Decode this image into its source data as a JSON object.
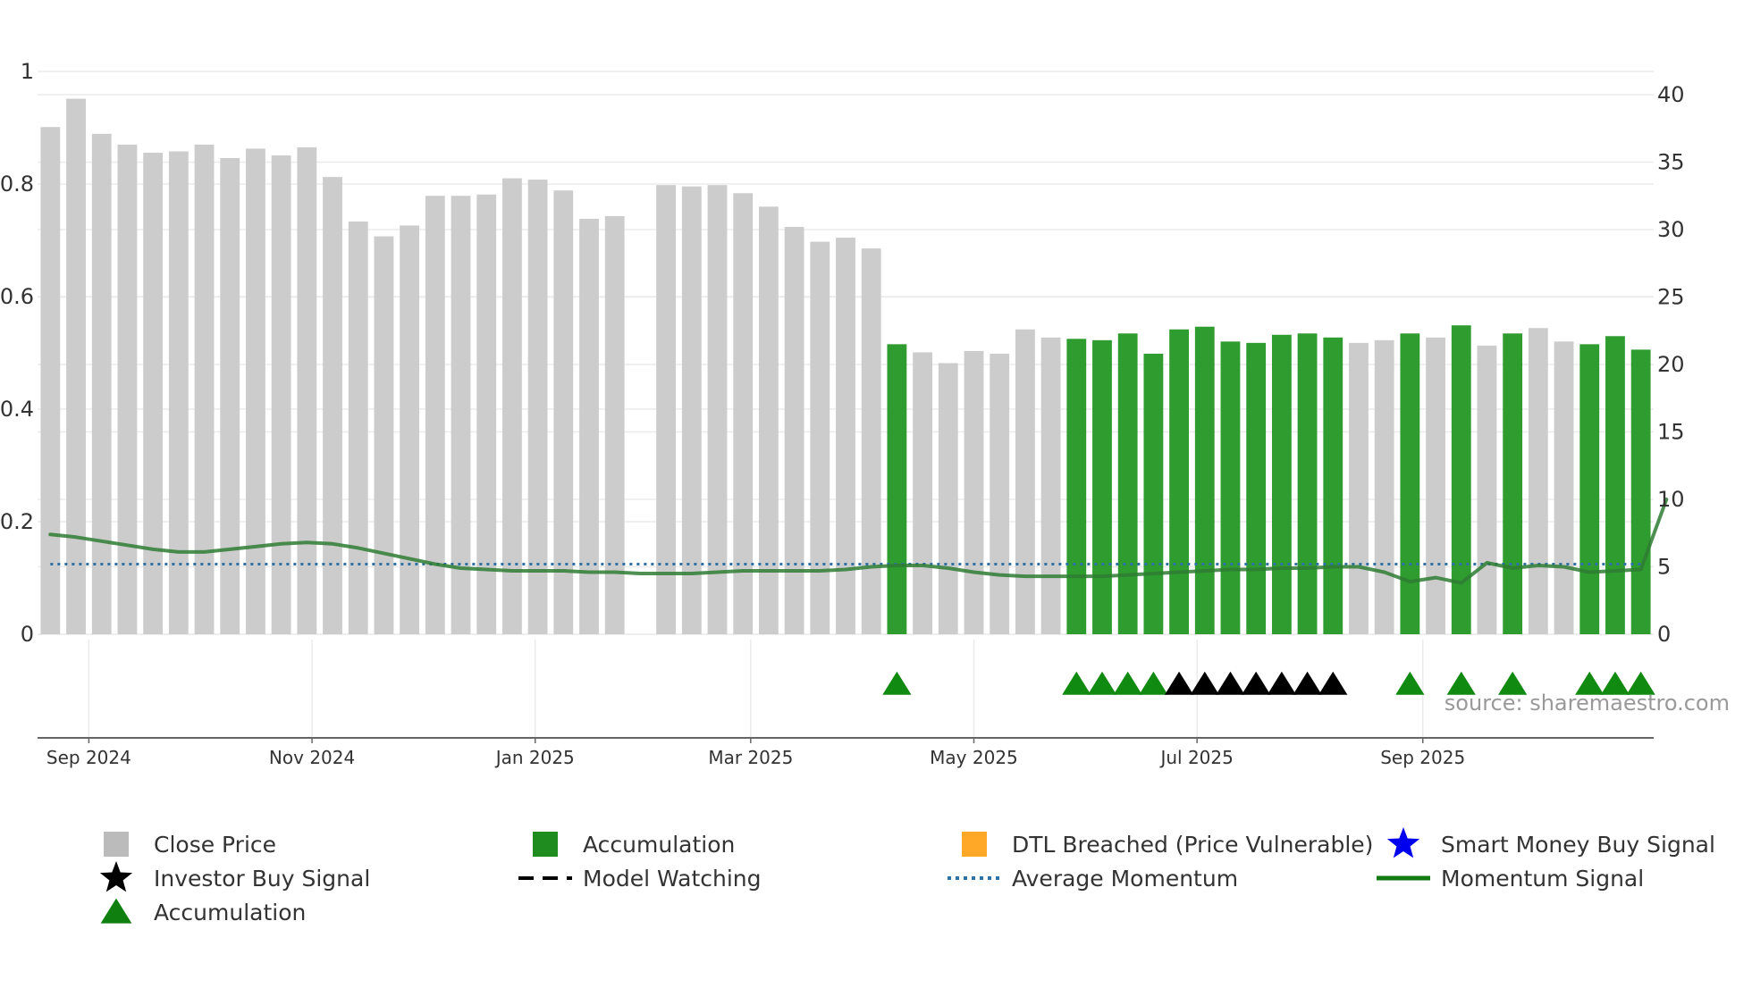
{
  "chart_data": {
    "type": "bar",
    "title": "",
    "source": "source: sharemaestro.com",
    "left_axis": {
      "min": 0,
      "max": 1,
      "ticks": [
        "0",
        "0.2",
        "0.4",
        "0.6",
        "0.8",
        "1"
      ]
    },
    "right_axis": {
      "min": 0,
      "max": 40,
      "ticks": [
        "0",
        "5",
        "10",
        "15",
        "20",
        "25",
        "30",
        "35",
        "40"
      ]
    },
    "x_axis": {
      "labels": [
        "Sep 2024",
        "Nov 2024",
        "Jan 2025",
        "Mar 2025",
        "May 2025",
        "Jul 2025",
        "Sep 2025"
      ],
      "label_at_week": [
        2.0,
        10.7,
        19.4,
        27.8,
        36.5,
        45.2,
        54.0
      ]
    },
    "close_price": [
      37.6,
      39.7,
      37.1,
      36.3,
      35.7,
      35.8,
      36.3,
      35.3,
      36.0,
      35.5,
      36.1,
      33.9,
      30.6,
      29.5,
      30.3,
      32.5,
      32.5,
      32.6,
      33.8,
      33.7,
      32.9,
      30.8,
      31.0,
      null,
      33.3,
      33.2,
      33.3,
      32.7,
      31.7,
      30.2,
      29.1,
      29.4,
      28.6,
      21.5,
      20.9,
      20.1,
      21.0,
      20.8,
      22.6,
      22.0,
      21.9,
      21.8,
      22.3,
      20.8,
      22.6,
      22.8,
      21.7,
      21.6,
      22.2,
      22.3,
      22.0,
      21.6,
      21.8,
      22.3,
      22.0,
      22.9,
      21.4,
      22.3,
      22.7,
      21.7,
      21.5,
      22.1,
      21.1
    ],
    "accumulation_weeks": [
      33,
      40,
      41,
      42,
      43,
      44,
      45,
      46,
      47,
      48,
      49,
      50,
      53,
      55,
      57,
      60,
      61,
      62
    ],
    "momentum_signal": [
      7.4,
      7.2,
      6.9,
      6.6,
      6.3,
      6.1,
      6.1,
      6.3,
      6.5,
      6.7,
      6.8,
      6.7,
      6.4,
      6.0,
      5.6,
      5.2,
      4.9,
      4.8,
      4.7,
      4.7,
      4.7,
      4.6,
      4.6,
      4.5,
      4.5,
      4.5,
      4.6,
      4.7,
      4.7,
      4.7,
      4.7,
      4.8,
      5.0,
      5.1,
      5.1,
      4.9,
      4.6,
      4.4,
      4.3,
      4.3,
      4.3,
      4.3,
      4.4,
      4.5,
      4.6,
      4.7,
      4.8,
      4.8,
      4.9,
      4.9,
      5.0,
      5.0,
      4.6,
      3.9,
      4.2,
      3.8,
      5.3,
      4.9,
      5.1,
      5.0,
      4.6,
      4.7,
      4.8,
      10.0
    ],
    "average_momentum": 5.2,
    "accumulation_triangles": [
      33,
      40,
      41,
      42,
      43,
      53,
      55,
      57,
      60,
      61,
      62
    ],
    "investor_buy_triangles": [
      44,
      45,
      46,
      47,
      48,
      49,
      50
    ],
    "legend": [
      {
        "label": "Close Price",
        "marker": "gray-square"
      },
      {
        "label": "Accumulation",
        "marker": "green-square"
      },
      {
        "label": "DTL Breached (Price Vulnerable)",
        "marker": "orange-square"
      },
      {
        "label": "Smart Money Buy Signal",
        "marker": "blue-star"
      },
      {
        "label": "Investor Buy Signal",
        "marker": "black-star"
      },
      {
        "label": "Model Watching",
        "marker": "black-dash"
      },
      {
        "label": "Average Momentum",
        "marker": "blue-dotted"
      },
      {
        "label": "Momentum Signal",
        "marker": "green-line"
      },
      {
        "label": "Accumulation",
        "marker": "green-triangle"
      }
    ],
    "colors": {
      "close_price": "#cccccc",
      "accumulation": "#2e9c2e",
      "dtl": "#ffa726",
      "smart_money": "#0000ee",
      "investor_buy": "#000000",
      "avg_momentum": "#2c72a8",
      "momentum": "#2e7d32",
      "triangle": "#118a11",
      "gridline": "#ebebeb",
      "axis": "#666666"
    }
  }
}
